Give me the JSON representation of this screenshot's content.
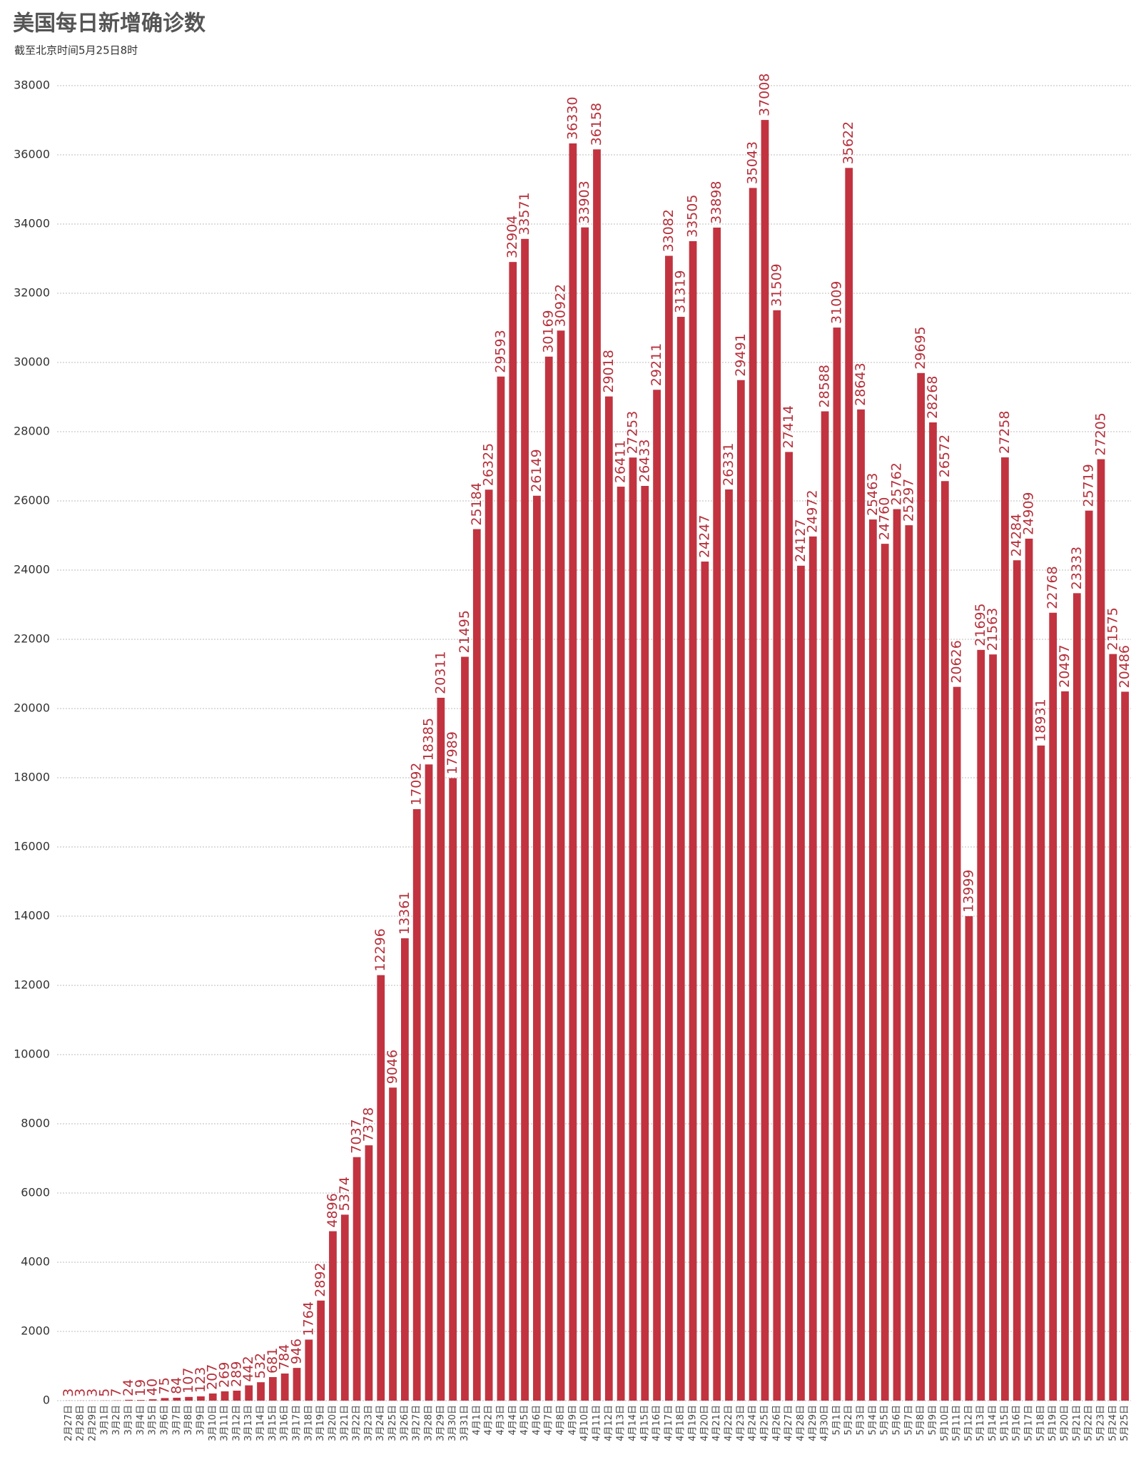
{
  "chart_data": {
    "type": "bar",
    "title": "美国每日新增确诊数",
    "subtitle": "截至北京时间5月25日8时",
    "categories": [
      "2月27日",
      "2月28日",
      "2月29日",
      "3月1日",
      "3月2日",
      "3月3日",
      "3月4日",
      "3月5日",
      "3月6日",
      "3月7日",
      "3月8日",
      "3月9日",
      "3月10日",
      "3月11日",
      "3月12日",
      "3月13日",
      "3月14日",
      "3月15日",
      "3月16日",
      "3月17日",
      "3月18日",
      "3月19日",
      "3月20日",
      "3月21日",
      "3月22日",
      "3月23日",
      "3月24日",
      "3月25日",
      "3月26日",
      "3月27日",
      "3月28日",
      "3月29日",
      "3月30日",
      "3月31日",
      "4月1日",
      "4月2日",
      "4月3日",
      "4月4日",
      "4月5日",
      "4月6日",
      "4月7日",
      "4月8日",
      "4月9日",
      "4月10日",
      "4月11日",
      "4月12日",
      "4月13日",
      "4月14日",
      "4月15日",
      "4月16日",
      "4月17日",
      "4月18日",
      "4月19日",
      "4月20日",
      "4月21日",
      "4月22日",
      "4月23日",
      "4月24日",
      "4月25日",
      "4月26日",
      "4月27日",
      "4月28日",
      "4月29日",
      "4月30日",
      "5月1日",
      "5月2日",
      "5月3日",
      "5月4日",
      "5月5日",
      "5月6日",
      "5月7日",
      "5月8日",
      "5月9日",
      "5月10日",
      "5月11日",
      "5月12日",
      "5月13日",
      "5月14日",
      "5月15日",
      "5月16日",
      "5月17日",
      "5月18日",
      "5月19日",
      "5月20日",
      "5月21日",
      "5月22日",
      "5月23日",
      "5月24日",
      "5月25日"
    ],
    "values": [
      3,
      3,
      3,
      5,
      7,
      24,
      19,
      40,
      75,
      84,
      107,
      123,
      207,
      269,
      289,
      442,
      532,
      681,
      784,
      946,
      1764,
      2892,
      4896,
      5374,
      7037,
      7378,
      12296,
      9046,
      13361,
      17092,
      18385,
      20311,
      17989,
      21495,
      25184,
      26325,
      29593,
      32904,
      33571,
      26149,
      30169,
      30922,
      36330,
      33903,
      36158,
      29018,
      26411,
      27253,
      26433,
      29211,
      33082,
      31319,
      33505,
      24247,
      33898,
      26331,
      29491,
      35043,
      37008,
      31509,
      27414,
      24127,
      24972,
      28588,
      31009,
      35622,
      28643,
      25463,
      24760,
      25762,
      25297,
      29695,
      28268,
      26572,
      20626,
      13999,
      21695,
      21563,
      27258,
      24284,
      24909,
      18931,
      22768,
      20497,
      23333,
      25719,
      27205,
      21575,
      20486
    ],
    "color": "#c23340",
    "ylim": [
      0,
      38000
    ],
    "yticks": [
      0,
      2000,
      4000,
      6000,
      8000,
      10000,
      12000,
      14000,
      16000,
      18000,
      20000,
      22000,
      24000,
      26000,
      28000,
      30000,
      32000,
      34000,
      36000,
      38000
    ],
    "grid": true
  }
}
